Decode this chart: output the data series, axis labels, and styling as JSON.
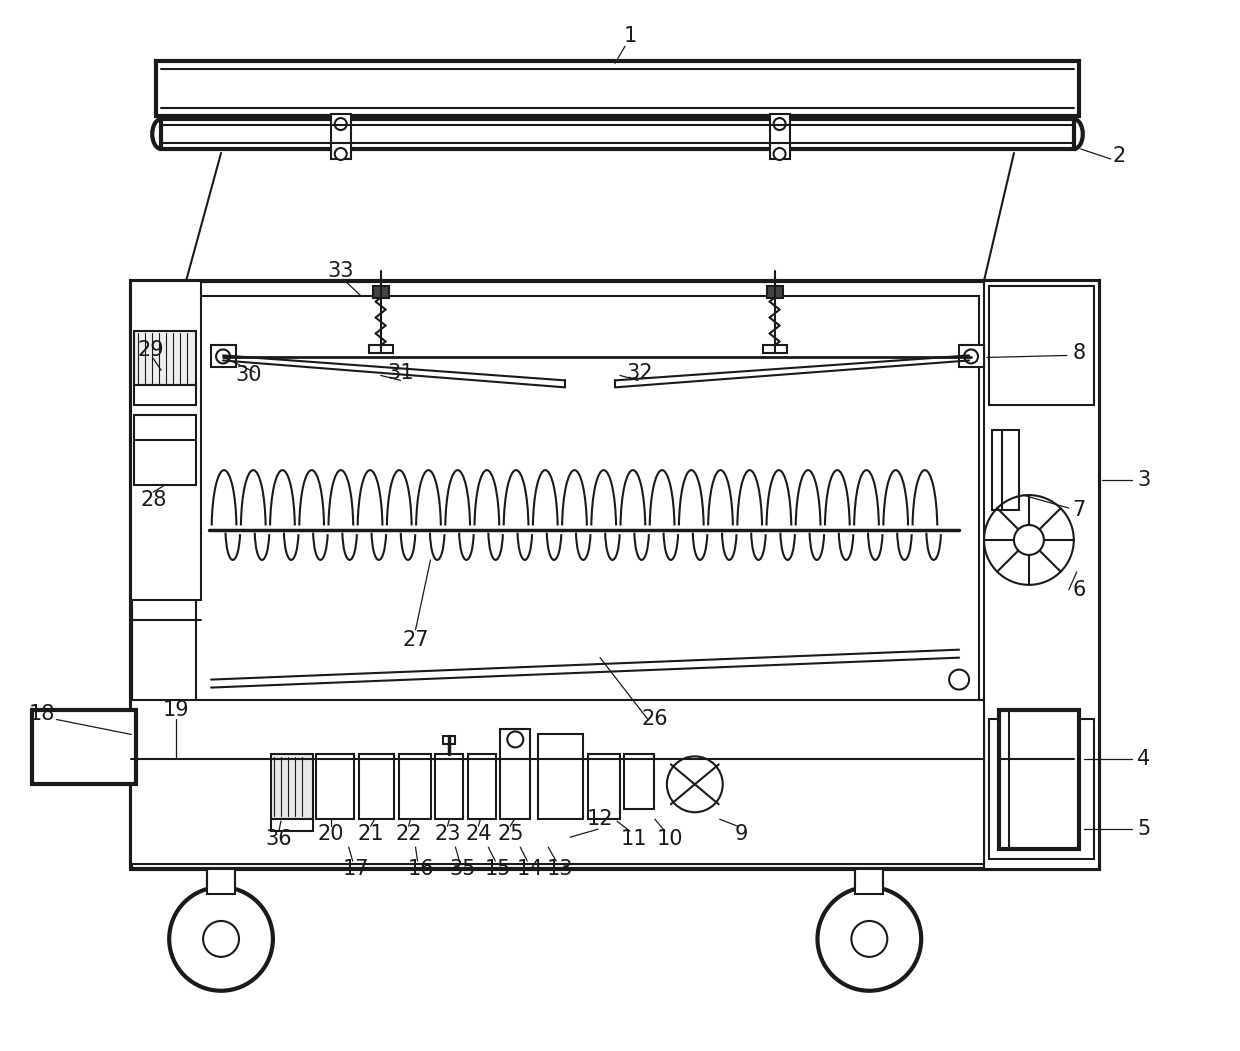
{
  "bg_color": "#ffffff",
  "line_color": "#1a1a1a",
  "lw": 1.5,
  "tlw": 3.0,
  "fig_width": 12.4,
  "fig_height": 10.51,
  "dpi": 100
}
